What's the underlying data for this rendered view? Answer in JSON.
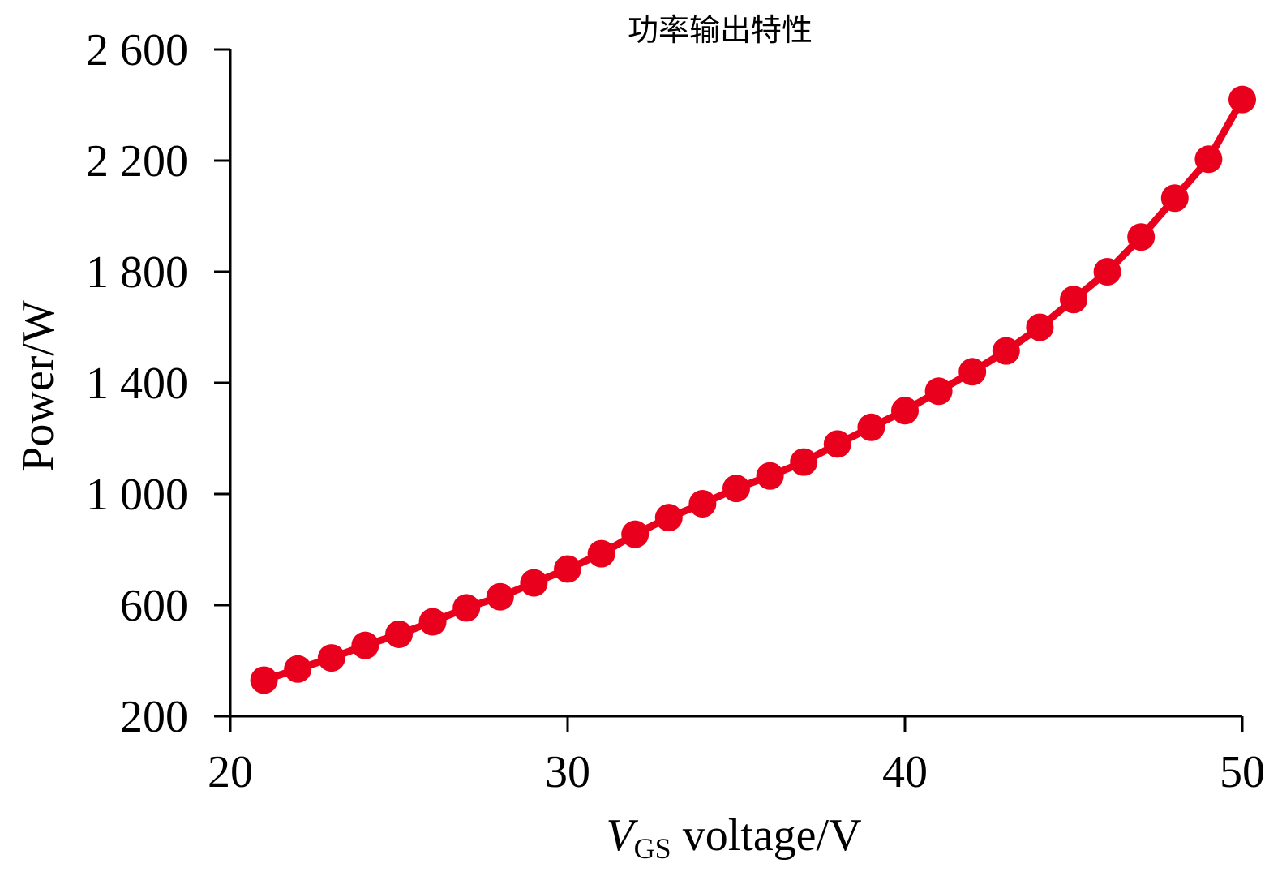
{
  "chart_data": {
    "type": "line",
    "title": "功率输出特性",
    "xlabel_main": "V",
    "xlabel_sub": "GS",
    "xlabel_rest": " voltage/V",
    "ylabel": "Power/W",
    "xlim": [
      20,
      50
    ],
    "ylim": [
      200,
      2600
    ],
    "x_ticks": [
      20,
      30,
      40,
      50
    ],
    "x_tick_labels": [
      "20",
      "30",
      "40",
      "50"
    ],
    "y_ticks": [
      200,
      600,
      1000,
      1400,
      1800,
      2200,
      2600
    ],
    "y_tick_labels": [
      "200",
      "600",
      "1 000",
      "1 400",
      "1 800",
      "2 200",
      "2 600"
    ],
    "grid": false,
    "series": [
      {
        "color": "#e8001c",
        "x": [
          21,
          22,
          23,
          24,
          25,
          26,
          27,
          28,
          29,
          30,
          31,
          32,
          33,
          34,
          35,
          36,
          37,
          38,
          39,
          40,
          41,
          42,
          43,
          44,
          45,
          46,
          47,
          48,
          49,
          50
        ],
        "y": [
          330,
          370,
          410,
          455,
          495,
          540,
          590,
          630,
          680,
          730,
          785,
          855,
          915,
          965,
          1020,
          1065,
          1115,
          1180,
          1240,
          1300,
          1370,
          1440,
          1515,
          1600,
          1700,
          1800,
          1925,
          2065,
          2205,
          2420
        ]
      }
    ]
  }
}
